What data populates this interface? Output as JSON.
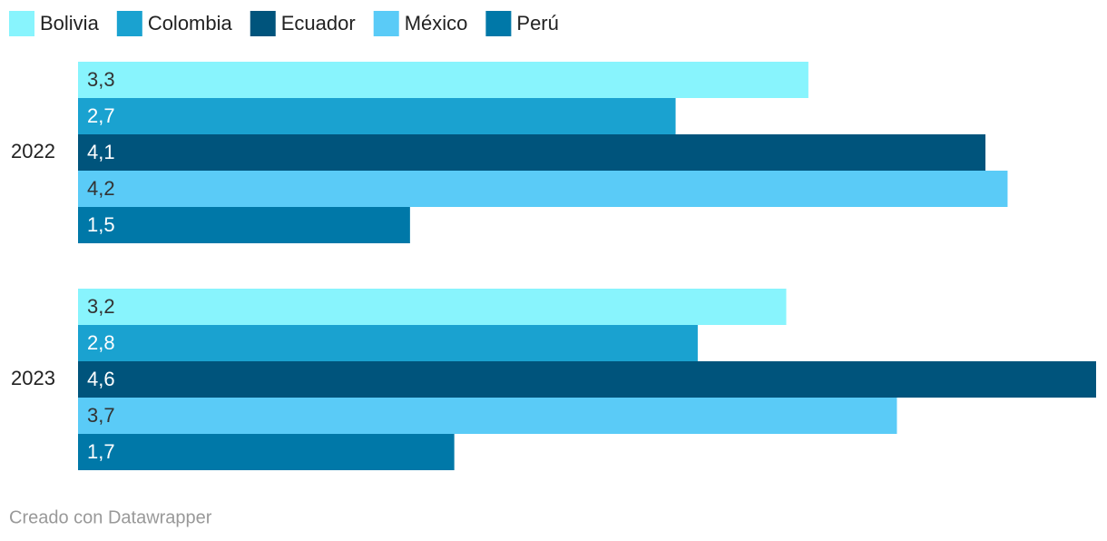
{
  "chart_data": {
    "type": "bar",
    "orientation": "horizontal",
    "categories": [
      "2022",
      "2023"
    ],
    "series": [
      {
        "name": "Bolivia",
        "color": "#88f4fd",
        "values": [
          3.3,
          3.2
        ],
        "value_labels": [
          "3,3",
          "3,2"
        ]
      },
      {
        "name": "Colombia",
        "color": "#1aa2d0",
        "values": [
          2.7,
          2.8
        ],
        "value_labels": [
          "2,7",
          "2,8"
        ]
      },
      {
        "name": "Ecuador",
        "color": "#00547c",
        "values": [
          4.1,
          4.6
        ],
        "value_labels": [
          "4,1",
          "4,6"
        ]
      },
      {
        "name": "México",
        "color": "#5acbf7",
        "values": [
          4.2,
          3.7
        ],
        "value_labels": [
          "4,2",
          "3,7"
        ]
      },
      {
        "name": "Perú",
        "color": "#0078a8",
        "values": [
          1.5,
          1.7
        ],
        "value_labels": [
          "1,5",
          "1,7"
        ]
      }
    ],
    "legend": "top-left",
    "credit": "Creado con Datawrapper"
  }
}
